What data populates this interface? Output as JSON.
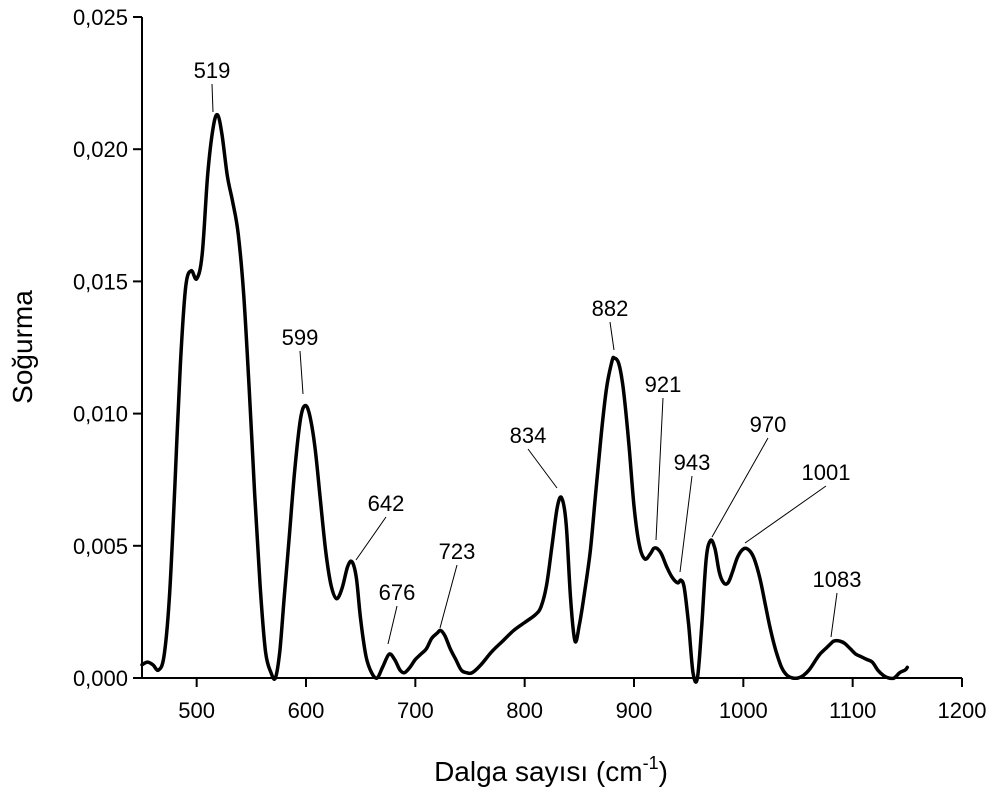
{
  "chart_data": {
    "type": "line",
    "xlabel": "Dalga sayısı (cm",
    "xlabel_sup": "-1",
    "xlabel_close": ")",
    "ylabel": "Soğurma",
    "xlim": [
      450,
      1200
    ],
    "ylim": [
      0,
      0.025
    ],
    "x_ticks": [
      500,
      600,
      700,
      800,
      900,
      1000,
      1100,
      1200
    ],
    "x_tick_labels": [
      "500",
      "600",
      "700",
      "800",
      "900",
      "1000",
      "1100",
      "1200"
    ],
    "y_ticks": [
      0,
      0.005,
      0.01,
      0.015,
      0.02,
      0.025
    ],
    "y_tick_labels": [
      "0,000",
      "0,005",
      "0,010",
      "0,015",
      "0,020",
      "0,025"
    ],
    "grid": false,
    "series": [
      {
        "color": "#000000",
        "x": [
          450,
          455,
          460,
          465,
          470,
          475,
          480,
          485,
          490,
          495,
          500,
          505,
          510,
          515,
          519,
          523,
          528,
          533,
          538,
          543,
          548,
          553,
          558,
          563,
          568,
          572,
          576,
          580,
          585,
          590,
          595,
          599,
          603,
          608,
          613,
          618,
          623,
          628,
          633,
          638,
          642,
          646,
          650,
          655,
          660,
          665,
          670,
          676,
          681,
          686,
          690,
          695,
          700,
          705,
          710,
          715,
          720,
          723,
          727,
          732,
          737,
          742,
          747,
          752,
          760,
          770,
          780,
          790,
          800,
          810,
          815,
          820,
          825,
          830,
          834,
          838,
          842,
          846,
          850,
          855,
          860,
          865,
          870,
          875,
          880,
          882,
          886,
          890,
          895,
          900,
          905,
          910,
          915,
          918,
          921,
          925,
          930,
          935,
          940,
          943,
          946,
          950,
          954,
          958,
          962,
          966,
          970,
          974,
          978,
          982,
          986,
          990,
          995,
          1001,
          1006,
          1010,
          1015,
          1020,
          1025,
          1030,
          1035,
          1040,
          1045,
          1050,
          1055,
          1060,
          1065,
          1070,
          1075,
          1080,
          1083,
          1088,
          1093,
          1098,
          1103,
          1108,
          1113,
          1118,
          1123,
          1128,
          1133,
          1138,
          1143,
          1148,
          1150
        ],
        "y": [
          0.0005,
          0.0006,
          0.0005,
          0.0003,
          0.0008,
          0.003,
          0.0072,
          0.0118,
          0.0148,
          0.0154,
          0.0151,
          0.016,
          0.019,
          0.0208,
          0.0213,
          0.0206,
          0.019,
          0.018,
          0.0168,
          0.0145,
          0.011,
          0.007,
          0.0035,
          0.001,
          0.0002,
          0.0,
          0.001,
          0.003,
          0.0055,
          0.008,
          0.0098,
          0.0103,
          0.01,
          0.0088,
          0.0068,
          0.0048,
          0.0035,
          0.003,
          0.0034,
          0.0042,
          0.0044,
          0.0038,
          0.0022,
          0.0008,
          0.0002,
          0.0,
          0.0004,
          0.0009,
          0.0007,
          0.0003,
          0.0002,
          0.0004,
          0.0007,
          0.0009,
          0.0011,
          0.0015,
          0.0017,
          0.0018,
          0.0016,
          0.0011,
          0.0007,
          0.0003,
          0.0002,
          0.0002,
          0.0005,
          0.001,
          0.0014,
          0.0018,
          0.0021,
          0.0024,
          0.0027,
          0.0035,
          0.005,
          0.0065,
          0.0068,
          0.0058,
          0.003,
          0.0014,
          0.002,
          0.0033,
          0.0048,
          0.007,
          0.0092,
          0.011,
          0.012,
          0.0121,
          0.0119,
          0.011,
          0.009,
          0.0065,
          0.005,
          0.0045,
          0.0047,
          0.0049,
          0.0049,
          0.0047,
          0.0042,
          0.0038,
          0.0036,
          0.0037,
          0.0034,
          0.002,
          0.0002,
          0.0,
          0.002,
          0.0045,
          0.0052,
          0.0049,
          0.004,
          0.0036,
          0.0036,
          0.004,
          0.0046,
          0.0049,
          0.0048,
          0.0045,
          0.0038,
          0.0028,
          0.0018,
          0.001,
          0.0004,
          0.0001,
          0.0,
          0.0,
          0.0001,
          0.0003,
          0.0006,
          0.0009,
          0.0011,
          0.0013,
          0.0014,
          0.0014,
          0.0013,
          0.0011,
          0.0009,
          0.0008,
          0.0007,
          0.0006,
          0.0003,
          0.0001,
          0.0,
          0.0,
          0.0002,
          0.0003,
          0.0004
        ]
      }
    ],
    "annotations": [
      {
        "text": "519",
        "x": 519,
        "y": 0.0213
      },
      {
        "text": "599",
        "x": 599,
        "y": 0.0103
      },
      {
        "text": "642",
        "x": 642,
        "y": 0.0044
      },
      {
        "text": "676",
        "x": 676,
        "y": 0.0009
      },
      {
        "text": "723",
        "x": 723,
        "y": 0.0018
      },
      {
        "text": "834",
        "x": 834,
        "y": 0.0068
      },
      {
        "text": "882",
        "x": 882,
        "y": 0.0121
      },
      {
        "text": "921",
        "x": 921,
        "y": 0.0049
      },
      {
        "text": "943",
        "x": 943,
        "y": 0.0037
      },
      {
        "text": "970",
        "x": 970,
        "y": 0.0052
      },
      {
        "text": "1001",
        "x": 1001,
        "y": 0.0049
      },
      {
        "text": "1083",
        "x": 1083,
        "y": 0.0014
      }
    ]
  }
}
